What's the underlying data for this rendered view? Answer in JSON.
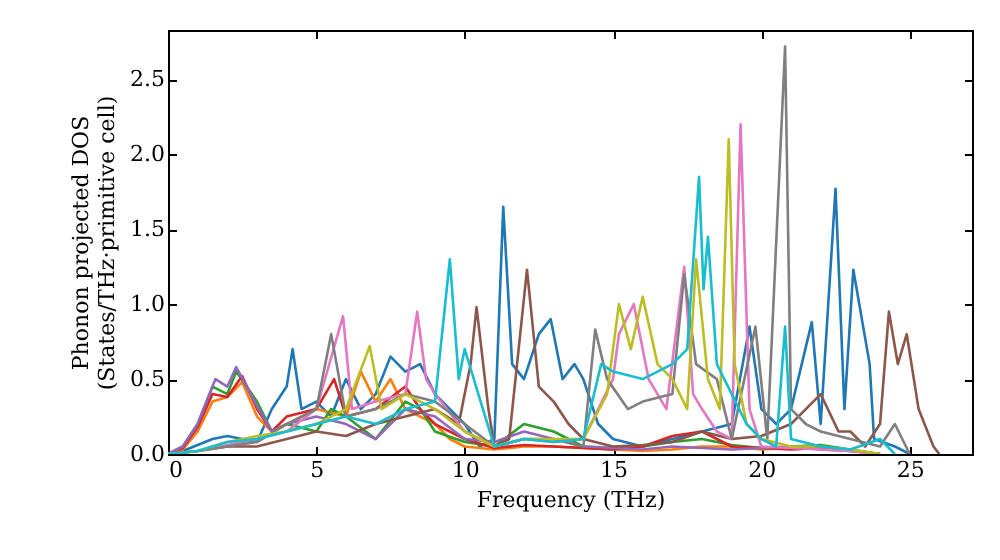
{
  "chart_data": {
    "type": "line",
    "xlabel": "Frequency (THz)",
    "ylabel": "Phonon projected DOS\n(States/THz·primitive cell)",
    "xlim": [
      0,
      27.1
    ],
    "ylim": [
      0,
      2.83
    ],
    "xticks": [
      0,
      5,
      10,
      15,
      20,
      25
    ],
    "yticks": [
      {
        "value": 0,
        "label": "0.0"
      },
      0.5,
      {
        "value": 1,
        "label": "1.0"
      },
      1.5,
      {
        "value": 2,
        "label": "2.0"
      },
      2.5
    ],
    "grid": false,
    "series": [
      {
        "color": "#1f77b4",
        "x": [
          0,
          0.5,
          1,
          1.5,
          2,
          2.5,
          3,
          3.5,
          4,
          4.2,
          4.5,
          5,
          5.5,
          6,
          6.5,
          7,
          7.5,
          8,
          8.5,
          9,
          9.5,
          10,
          10.5,
          11,
          11.3,
          11.6,
          12,
          12.5,
          12.9,
          13.3,
          13.7,
          14,
          14.5,
          15,
          16,
          17,
          18,
          19,
          19.6,
          20,
          20.5,
          21,
          21.7,
          22,
          22.5,
          22.8,
          23.1,
          23.65,
          23.8,
          24.5,
          25
        ],
        "values": [
          0,
          0.02,
          0.06,
          0.1,
          0.12,
          0.1,
          0.08,
          0.3,
          0.45,
          0.7,
          0.3,
          0.35,
          0.25,
          0.5,
          0.3,
          0.4,
          0.65,
          0.55,
          0.6,
          0.4,
          0.3,
          0.2,
          0.05,
          0.1,
          1.65,
          0.6,
          0.5,
          0.8,
          0.9,
          0.5,
          0.6,
          0.5,
          0.2,
          0.1,
          0.05,
          0.1,
          0.15,
          0.2,
          0.85,
          0.3,
          0.2,
          0.3,
          0.88,
          0.2,
          1.77,
          0.3,
          1.23,
          0.6,
          0.1,
          0.05,
          0
        ]
      },
      {
        "color": "#ff7f0e",
        "x": [
          0,
          0.5,
          1,
          1.5,
          2,
          2.5,
          3,
          3.5,
          4,
          5,
          6,
          6.5,
          7,
          7.5,
          8,
          8.5,
          9,
          9.5,
          10,
          11,
          12,
          13,
          14,
          15,
          16,
          17,
          18,
          19,
          20,
          21
        ],
        "values": [
          0,
          0.03,
          0.15,
          0.35,
          0.38,
          0.48,
          0.25,
          0.15,
          0.2,
          0.3,
          0.25,
          0.55,
          0.35,
          0.5,
          0.3,
          0.25,
          0.2,
          0.1,
          0.05,
          0.03,
          0.05,
          0.05,
          0.04,
          0.03,
          0.02,
          0.03,
          0.05,
          0.05,
          0.03,
          0.04
        ]
      },
      {
        "color": "#2ca02c",
        "x": [
          0,
          0.5,
          1,
          1.5,
          2,
          2.3,
          3,
          3.5,
          4,
          5,
          5.5,
          6,
          7,
          8,
          8.5,
          9,
          10,
          11,
          12,
          13,
          14,
          15,
          16,
          17,
          18,
          19,
          20,
          21,
          22,
          23,
          24
        ],
        "values": [
          0,
          0.05,
          0.2,
          0.45,
          0.4,
          0.55,
          0.35,
          0.15,
          0.2,
          0.15,
          0.3,
          0.25,
          0.1,
          0.35,
          0.3,
          0.15,
          0.08,
          0.05,
          0.2,
          0.15,
          0.05,
          0.04,
          0.05,
          0.08,
          0.1,
          0.06,
          0.04,
          0.05,
          0.06,
          0.03,
          0
        ]
      },
      {
        "color": "#d62728",
        "x": [
          0,
          0.5,
          1,
          1.5,
          2,
          2.5,
          3,
          3.5,
          4,
          5,
          5.6,
          6,
          7,
          8,
          8.5,
          9,
          10,
          11,
          12,
          13,
          14,
          15,
          16,
          17,
          18,
          19,
          20,
          21,
          22,
          23,
          24
        ],
        "values": [
          0,
          0.04,
          0.18,
          0.4,
          0.38,
          0.52,
          0.3,
          0.15,
          0.25,
          0.3,
          0.5,
          0.25,
          0.3,
          0.45,
          0.3,
          0.2,
          0.1,
          0.04,
          0.06,
          0.05,
          0.04,
          0.03,
          0.05,
          0.12,
          0.15,
          0.05,
          0.04,
          0.03,
          0.04,
          0.02,
          0
        ]
      },
      {
        "color": "#9467bd",
        "x": [
          0,
          0.5,
          1,
          1.6,
          2,
          2.3,
          3,
          3.5,
          4,
          5,
          6,
          7,
          8,
          9,
          10,
          11,
          12,
          13,
          14,
          15,
          16,
          17,
          18,
          19,
          20,
          21,
          22,
          23,
          24
        ],
        "values": [
          0,
          0.05,
          0.2,
          0.5,
          0.45,
          0.58,
          0.32,
          0.15,
          0.2,
          0.25,
          0.2,
          0.1,
          0.3,
          0.25,
          0.1,
          0.08,
          0.15,
          0.1,
          0.05,
          0.04,
          0.03,
          0.05,
          0.04,
          0.03,
          0.04,
          0.05,
          0.03,
          0.02,
          0
        ]
      },
      {
        "color": "#8c564b",
        "x": [
          0,
          1,
          2,
          3,
          4,
          5,
          6,
          7,
          8,
          9,
          9.8,
          10.2,
          10.4,
          10.8,
          11,
          11.5,
          12.1,
          12.5,
          13,
          13.5,
          14,
          15,
          16,
          17,
          18,
          19,
          20,
          21,
          22,
          22.6,
          23,
          23.5,
          24,
          24.3,
          24.6,
          24.9,
          25.3,
          25.8,
          26
        ],
        "values": [
          0,
          0.02,
          0.05,
          0.05,
          0.1,
          0.15,
          0.12,
          0.2,
          0.25,
          0.3,
          0.2,
          0.6,
          0.98,
          0.3,
          0.05,
          0.1,
          1.23,
          0.45,
          0.35,
          0.2,
          0.1,
          0.05,
          0.06,
          0.08,
          0.15,
          0.1,
          0.12,
          0.2,
          0.4,
          0.15,
          0.15,
          0.05,
          0.2,
          0.95,
          0.6,
          0.8,
          0.3,
          0.05,
          0
        ]
      },
      {
        "color": "#e377c2",
        "x": [
          0,
          1,
          2,
          3,
          4,
          5,
          5.9,
          6.2,
          7,
          8,
          8.4,
          8.7,
          9,
          10,
          11,
          12,
          13,
          14,
          15,
          15.2,
          15.7,
          16.2,
          16.8,
          17.4,
          17.7,
          18,
          18.5,
          19,
          19.3,
          19.6,
          20,
          21,
          22,
          23,
          24
        ],
        "values": [
          0,
          0.02,
          0.06,
          0.1,
          0.15,
          0.3,
          0.92,
          0.3,
          0.35,
          0.4,
          0.95,
          0.5,
          0.4,
          0.15,
          0.05,
          0.1,
          0.08,
          0.1,
          0.5,
          0.8,
          1.0,
          0.5,
          0.3,
          1.25,
          0.4,
          0.3,
          0.15,
          0.1,
          2.2,
          0.3,
          0.05,
          0.04,
          0.03,
          0.02,
          0
        ]
      },
      {
        "color": "#7f7f7f",
        "x": [
          0,
          1,
          2,
          3,
          4,
          5,
          5.5,
          6,
          7,
          8,
          9,
          10,
          11,
          12,
          13,
          14,
          14.4,
          14.8,
          15.5,
          16,
          17,
          17.4,
          17.8,
          18.5,
          19,
          19.8,
          20.2,
          20.8,
          21,
          21.5,
          22,
          23,
          24,
          24.5,
          25
        ],
        "values": [
          0,
          0.02,
          0.05,
          0.08,
          0.2,
          0.3,
          0.8,
          0.25,
          0.3,
          0.4,
          0.35,
          0.2,
          0.05,
          0.1,
          0.1,
          0.05,
          0.83,
          0.5,
          0.3,
          0.35,
          0.4,
          1.2,
          0.6,
          0.5,
          0.1,
          0.85,
          0.1,
          2.72,
          0.3,
          0.2,
          0.15,
          0.1,
          0.05,
          0.2,
          0
        ]
      },
      {
        "color": "#bcbd22",
        "x": [
          0,
          1,
          2,
          3,
          4,
          5,
          6,
          6.8,
          7.2,
          8,
          9,
          10,
          11,
          12,
          13,
          14,
          14.8,
          15.2,
          15.6,
          16,
          16.5,
          17,
          17.5,
          17.8,
          18.2,
          18.6,
          18.9,
          19.1,
          19.5,
          20,
          21,
          22,
          23,
          24
        ],
        "values": [
          0,
          0.02,
          0.08,
          0.12,
          0.15,
          0.2,
          0.3,
          0.72,
          0.3,
          0.4,
          0.3,
          0.15,
          0.05,
          0.1,
          0.1,
          0.1,
          0.4,
          1.0,
          0.7,
          1.05,
          0.6,
          0.5,
          0.3,
          1.3,
          0.5,
          0.3,
          2.1,
          0.6,
          0.2,
          0.1,
          0.05,
          0.05,
          0.03,
          0
        ]
      },
      {
        "color": "#17becf",
        "x": [
          0,
          1,
          2,
          3,
          4,
          5,
          6,
          7,
          8,
          9,
          9.5,
          9.8,
          10,
          11,
          12,
          13,
          14,
          14.6,
          15,
          16,
          17,
          17.5,
          17.9,
          18.05,
          18.2,
          18.5,
          19,
          19.5,
          20,
          20.5,
          20.8,
          21,
          22,
          23,
          24,
          24.5
        ],
        "values": [
          0,
          0.02,
          0.08,
          0.1,
          0.15,
          0.2,
          0.25,
          0.2,
          0.3,
          0.35,
          1.3,
          0.5,
          0.7,
          0.05,
          0.1,
          0.08,
          0.1,
          0.6,
          0.55,
          0.5,
          0.6,
          0.7,
          1.85,
          1.1,
          1.45,
          0.6,
          0.4,
          0.2,
          0.1,
          0.05,
          0.85,
          0.1,
          0.05,
          0.03,
          0.1,
          0
        ]
      }
    ]
  }
}
